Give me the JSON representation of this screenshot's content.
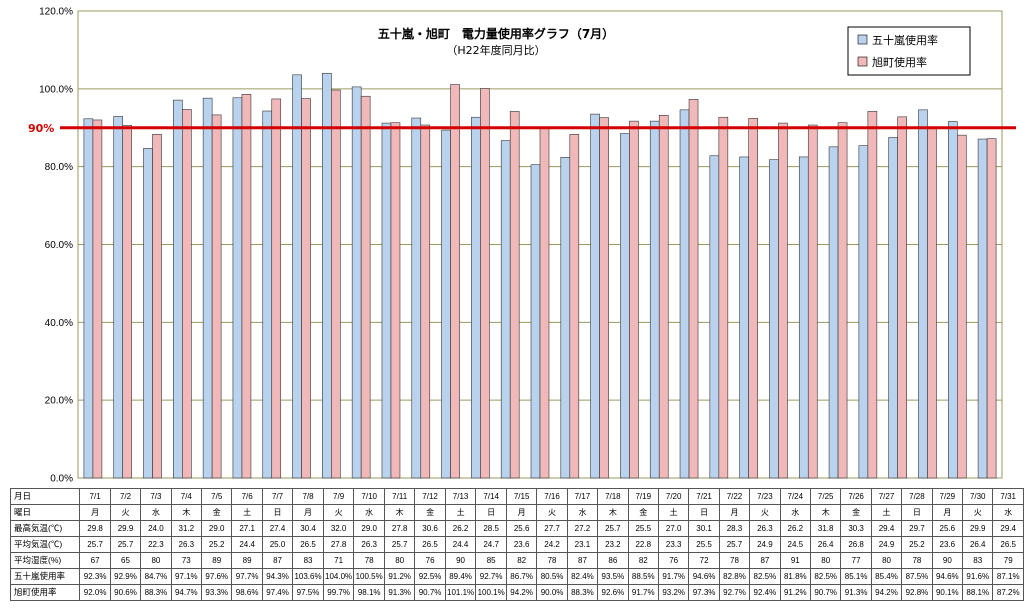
{
  "chart_data": {
    "type": "bar",
    "title": "五十嵐・旭町　電力量使用率グラフ（7月）",
    "subtitle": "（H22年度同月比）",
    "categories": [
      "7/1",
      "7/2",
      "7/3",
      "7/4",
      "7/5",
      "7/6",
      "7/7",
      "7/8",
      "7/9",
      "7/10",
      "7/11",
      "7/12",
      "7/13",
      "7/14",
      "7/15",
      "7/16",
      "7/17",
      "7/18",
      "7/19",
      "7/20",
      "7/21",
      "7/22",
      "7/23",
      "7/24",
      "7/25",
      "7/26",
      "7/27",
      "7/28",
      "7/29",
      "7/30",
      "7/31"
    ],
    "ylim": [
      0,
      120
    ],
    "yticks": [
      "0.0%",
      "20.0%",
      "40.0%",
      "60.0%",
      "80.0%",
      "100.0%",
      "120.0%"
    ],
    "grid": "horizontal",
    "legend_position": "top-right",
    "reference_line": {
      "value": 90,
      "label": "90%",
      "color": "#d40000"
    },
    "series": [
      {
        "name": "五十嵐使用率",
        "color": "#b9d3ee",
        "values": [
          92.3,
          92.9,
          84.7,
          97.1,
          97.6,
          97.7,
          94.3,
          103.6,
          104.0,
          100.5,
          91.2,
          92.5,
          89.4,
          92.7,
          86.7,
          80.5,
          82.4,
          93.5,
          88.5,
          91.7,
          94.6,
          82.8,
          82.5,
          81.8,
          82.5,
          85.1,
          85.4,
          87.5,
          94.6,
          91.6,
          87.1
        ]
      },
      {
        "name": "旭町使用率",
        "color": "#f0b8b8",
        "values": [
          92.0,
          90.6,
          88.3,
          94.7,
          93.3,
          98.6,
          97.4,
          97.5,
          99.7,
          98.1,
          91.3,
          90.7,
          101.1,
          100.1,
          94.2,
          90.0,
          88.3,
          92.6,
          91.7,
          93.2,
          97.3,
          92.7,
          92.4,
          91.2,
          90.7,
          91.3,
          94.2,
          92.8,
          90.1,
          88.1,
          87.2
        ]
      }
    ]
  },
  "table": {
    "rows": [
      {
        "label": "月日",
        "cells": [
          "7/1",
          "7/2",
          "7/3",
          "7/4",
          "7/5",
          "7/6",
          "7/7",
          "7/8",
          "7/9",
          "7/10",
          "7/11",
          "7/12",
          "7/13",
          "7/14",
          "7/15",
          "7/16",
          "7/17",
          "7/18",
          "7/19",
          "7/20",
          "7/21",
          "7/22",
          "7/23",
          "7/24",
          "7/25",
          "7/26",
          "7/27",
          "7/28",
          "7/29",
          "7/30",
          "7/31"
        ]
      },
      {
        "label": "曜日",
        "cells": [
          "月",
          "火",
          "水",
          "木",
          "金",
          "土",
          "日",
          "月",
          "火",
          "水",
          "木",
          "金",
          "土",
          "日",
          "月",
          "火",
          "水",
          "木",
          "金",
          "土",
          "日",
          "月",
          "火",
          "水",
          "木",
          "金",
          "土",
          "日",
          "月",
          "火",
          "水"
        ]
      },
      {
        "label": "最高気温(℃)",
        "cells": [
          "29.8",
          "29.9",
          "24.0",
          "31.2",
          "29.0",
          "27.1",
          "27.4",
          "30.4",
          "32.0",
          "29.0",
          "27.8",
          "30.6",
          "26.2",
          "28.5",
          "25.6",
          "27.7",
          "27.2",
          "25.7",
          "25.5",
          "27.0",
          "30.1",
          "28.3",
          "26.3",
          "26.2",
          "31.8",
          "30.3",
          "29.4",
          "29.7",
          "25.6",
          "29.9",
          "29.4"
        ]
      },
      {
        "label": "平均気温(℃)",
        "cells": [
          "25.7",
          "25.7",
          "22.3",
          "26.3",
          "25.2",
          "24.4",
          "25.0",
          "26.5",
          "27.8",
          "26.3",
          "25.7",
          "26.5",
          "24.4",
          "24.7",
          "23.6",
          "24.2",
          "23.1",
          "23.2",
          "22.8",
          "23.3",
          "25.5",
          "25.7",
          "24.9",
          "24.5",
          "26.4",
          "26.8",
          "24.9",
          "25.2",
          "23.6",
          "26.4",
          "26.5"
        ]
      },
      {
        "label": "平均湿度(%)",
        "cells": [
          "67",
          "65",
          "80",
          "73",
          "89",
          "89",
          "87",
          "83",
          "71",
          "78",
          "80",
          "76",
          "90",
          "85",
          "82",
          "78",
          "87",
          "86",
          "82",
          "76",
          "72",
          "78",
          "87",
          "91",
          "80",
          "77",
          "80",
          "78",
          "90",
          "83",
          "79"
        ]
      },
      {
        "label": "五十嵐使用率",
        "cells": [
          "92.3%",
          "92.9%",
          "84.7%",
          "97.1%",
          "97.6%",
          "97.7%",
          "94.3%",
          "103.6%",
          "104.0%",
          "100.5%",
          "91.2%",
          "92.5%",
          "89.4%",
          "92.7%",
          "86.7%",
          "80.5%",
          "82.4%",
          "93.5%",
          "88.5%",
          "91.7%",
          "94.6%",
          "82.8%",
          "82.5%",
          "81.8%",
          "82.5%",
          "85.1%",
          "85.4%",
          "87.5%",
          "94.6%",
          "91.6%",
          "87.1%"
        ]
      },
      {
        "label": "旭町使用率",
        "cells": [
          "92.0%",
          "90.6%",
          "88.3%",
          "94.7%",
          "93.3%",
          "98.6%",
          "97.4%",
          "97.5%",
          "99.7%",
          "98.1%",
          "91.3%",
          "90.7%",
          "101.1%",
          "100.1%",
          "94.2%",
          "90.0%",
          "88.3%",
          "92.6%",
          "91.7%",
          "93.2%",
          "97.3%",
          "92.7%",
          "92.4%",
          "91.2%",
          "90.7%",
          "91.3%",
          "94.2%",
          "92.8%",
          "90.1%",
          "88.1%",
          "87.2%"
        ]
      }
    ]
  }
}
